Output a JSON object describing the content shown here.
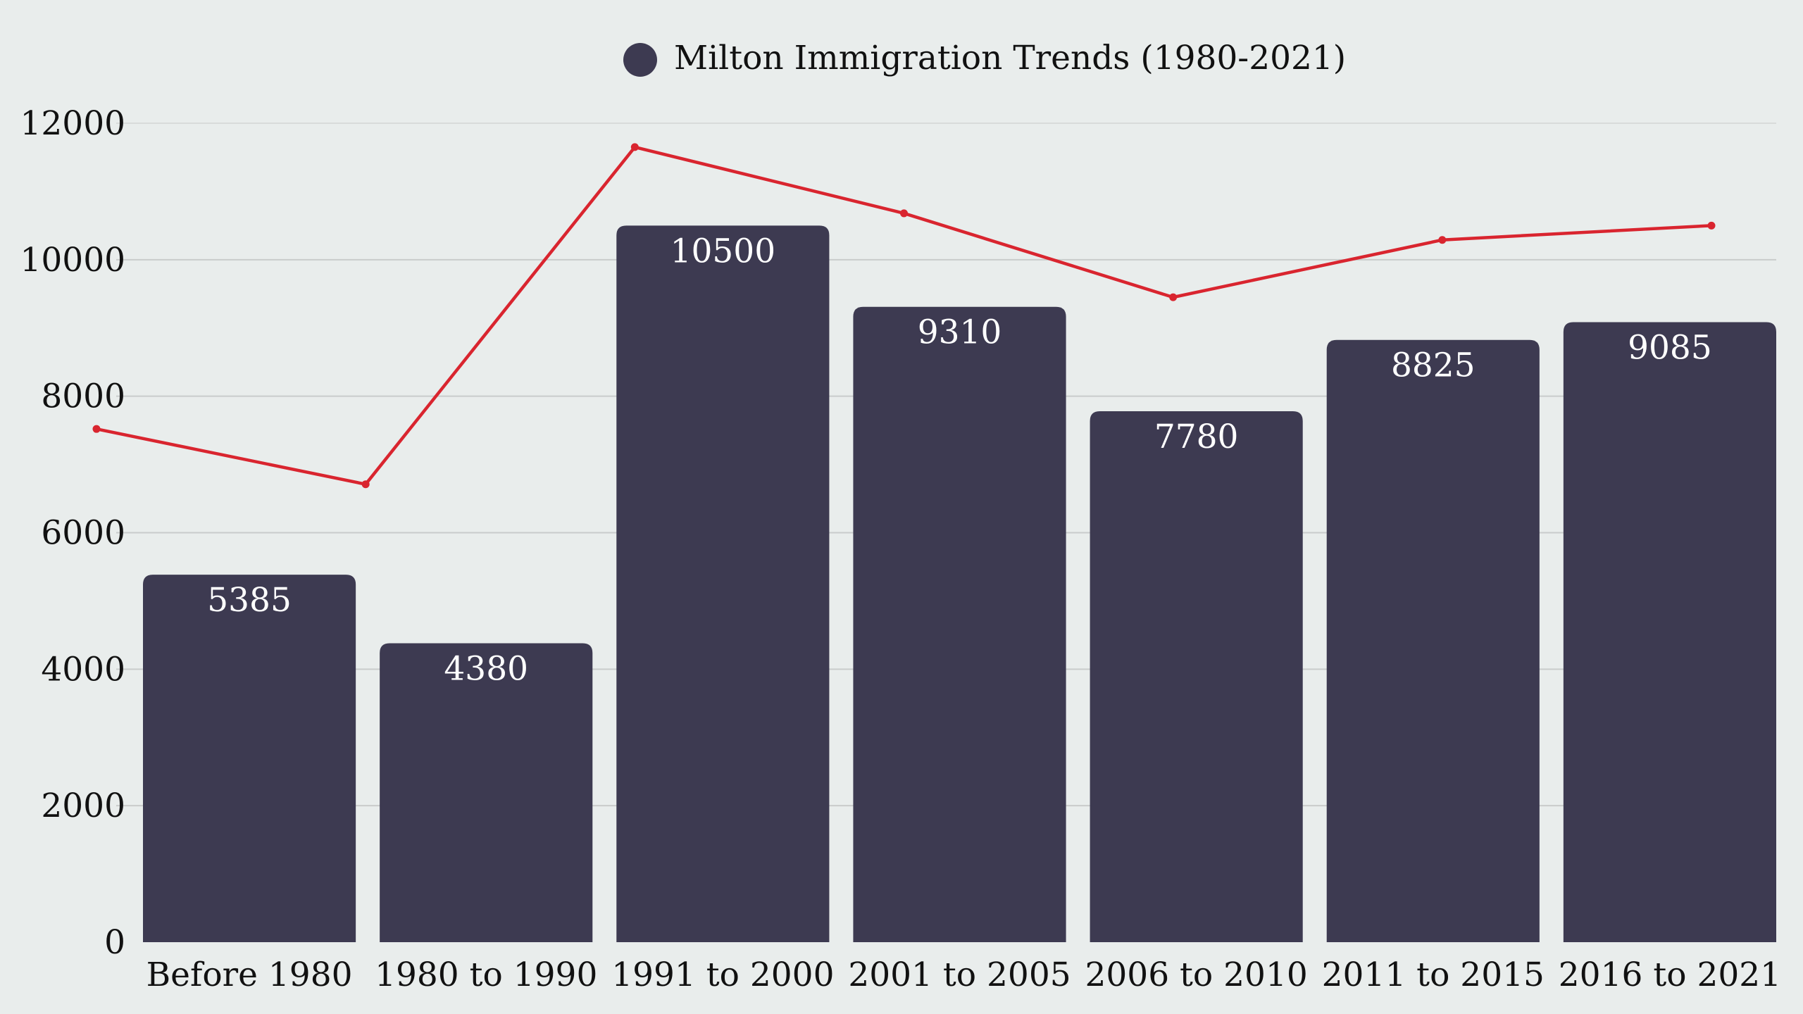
{
  "chart_data": {
    "type": "bar",
    "title": "",
    "legend": [
      {
        "label": "Milton Immigration Trends (1980-2021)",
        "color": "#3d3a51",
        "marker": "circle"
      }
    ],
    "legend_position": "top-center",
    "categories": [
      "Before 1980",
      "1980 to 1990",
      "1991 to 2000",
      "2001 to 2005",
      "2006 to 2010",
      "2011 to 2015",
      "2016 to 2021"
    ],
    "series": [
      {
        "name": "Milton Immigration Trends (1980-2021)",
        "type": "bar",
        "color": "#3d3a51",
        "values": [
          5385,
          4380,
          10500,
          9310,
          7780,
          8825,
          9085
        ],
        "data_labels": [
          "5385",
          "4380",
          "10500",
          "9310",
          "7780",
          "8825",
          "9085"
        ]
      },
      {
        "name": "trend-line",
        "type": "line",
        "color": "#d9252f",
        "values": [
          7520,
          6710,
          11650,
          10680,
          9450,
          10290,
          10500
        ]
      }
    ],
    "yticks": [
      0,
      2000,
      4000,
      6000,
      8000,
      10000,
      12000
    ],
    "ytick_labels": [
      "0",
      "2000",
      "4000",
      "6000",
      "8000",
      "10000",
      "12000"
    ],
    "ylim": [
      0,
      12000
    ],
    "xlabel": "",
    "ylabel": "",
    "grid": true,
    "colors": {
      "background": "#e9edec",
      "bar": "#3d3a51",
      "line": "#d9252f",
      "grid": "#c9cccb",
      "grid_top": "#d8dbda"
    }
  }
}
